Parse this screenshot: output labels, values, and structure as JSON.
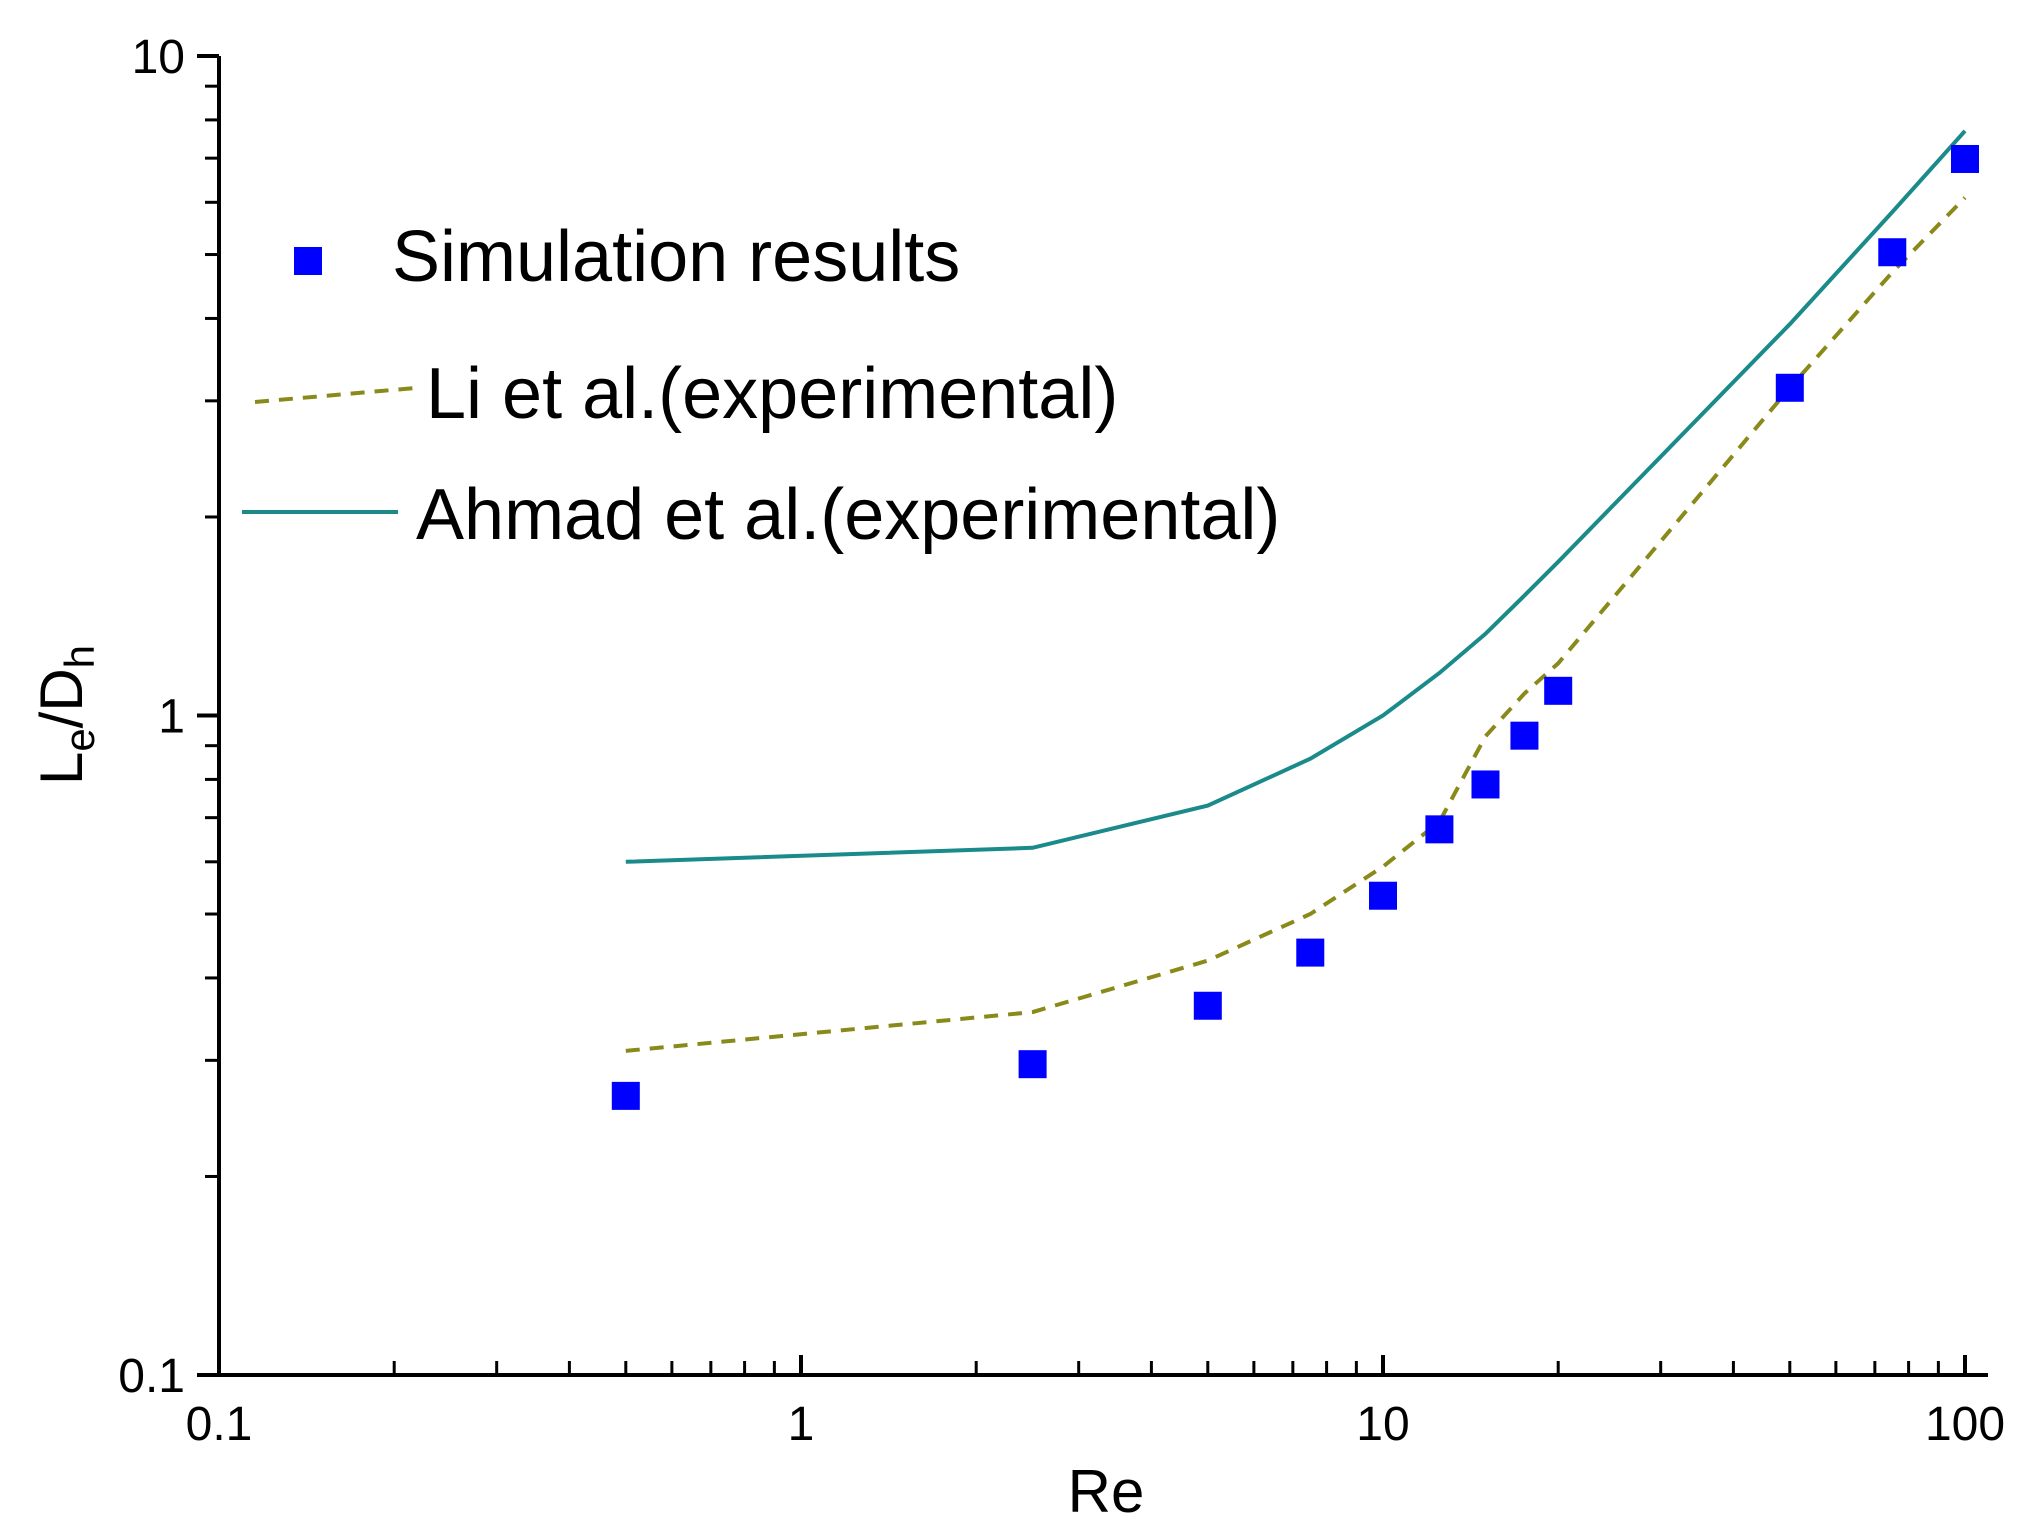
{
  "chart_data": {
    "type": "scatter",
    "xscale": "log",
    "yscale": "log",
    "xlim": [
      0.1,
      100
    ],
    "ylim": [
      0.1,
      10
    ],
    "xlabel": "Re",
    "ylabel": {
      "main1": "L",
      "sub1": "e",
      "main2": "/D",
      "sub2": "h"
    },
    "xticks": [
      {
        "value": 0.1,
        "label": "0.1"
      },
      {
        "value": 1,
        "label": "1"
      },
      {
        "value": 10,
        "label": "10"
      },
      {
        "value": 100,
        "label": "100"
      }
    ],
    "yticks": [
      {
        "value": 0.1,
        "label": "0.1"
      },
      {
        "value": 1,
        "label": "1"
      },
      {
        "value": 10,
        "label": "10"
      }
    ],
    "legend_position": "upper-left",
    "series": [
      {
        "name": "Simulation results",
        "kind": "markers",
        "marker": "square",
        "color": "#0000ff",
        "x": [
          0.5,
          2.5,
          5,
          7.5,
          10,
          12.5,
          15,
          17.5,
          20,
          50,
          75,
          100
        ],
        "y": [
          0.265,
          0.296,
          0.363,
          0.437,
          0.533,
          0.672,
          0.786,
          0.932,
          1.09,
          3.14,
          5.04,
          6.98
        ]
      },
      {
        "name": "Li et al.(experimental)",
        "kind": "line",
        "dash": "dashed",
        "color": "#8a8a1a",
        "x": [
          0.5,
          2.5,
          5,
          7.5,
          10,
          12.5,
          15,
          17.5,
          20,
          50,
          75,
          100
        ],
        "y": [
          0.31,
          0.355,
          0.425,
          0.5,
          0.59,
          0.69,
          0.93,
          1.08,
          1.2,
          3.14,
          4.7,
          6.1
        ]
      },
      {
        "name": "Ahmad et al.(experimental)",
        "kind": "line",
        "dash": "solid",
        "color": "#1a8a8a",
        "x": [
          0.5,
          2.5,
          5,
          7.5,
          10,
          12.5,
          15,
          17.5,
          20,
          50,
          75,
          100
        ],
        "y": [
          0.6,
          0.63,
          0.73,
          0.86,
          1.0,
          1.16,
          1.33,
          1.52,
          1.71,
          3.92,
          5.8,
          7.7
        ]
      }
    ]
  }
}
